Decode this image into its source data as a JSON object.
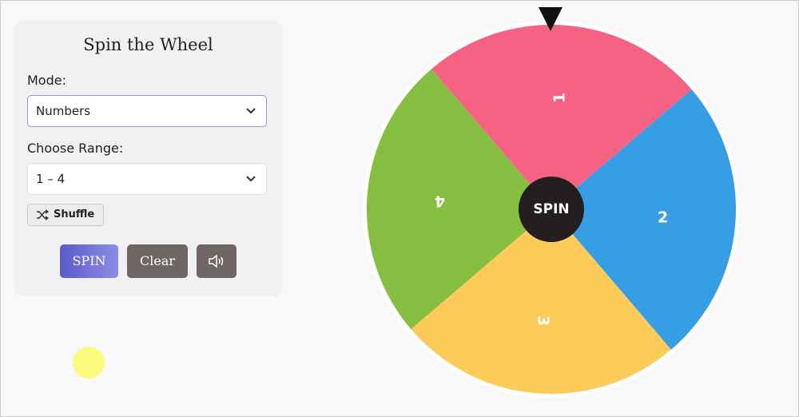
{
  "panel": {
    "title": "Spin the Wheel",
    "mode_label": "Mode:",
    "mode_value": "Numbers",
    "range_label": "Choose Range:",
    "range_value": "1 – 4",
    "shuffle": "Shuffle",
    "buttons": {
      "spin": "SPIN",
      "clear": "Clear"
    }
  },
  "wheel": {
    "center_label": "SPIN",
    "segments": [
      {
        "label": "1",
        "color": "#f66283"
      },
      {
        "label": "2",
        "color": "#379ee6"
      },
      {
        "label": "3",
        "color": "#fdcb5a"
      },
      {
        "label": "4",
        "color": "#86be41"
      }
    ]
  }
}
